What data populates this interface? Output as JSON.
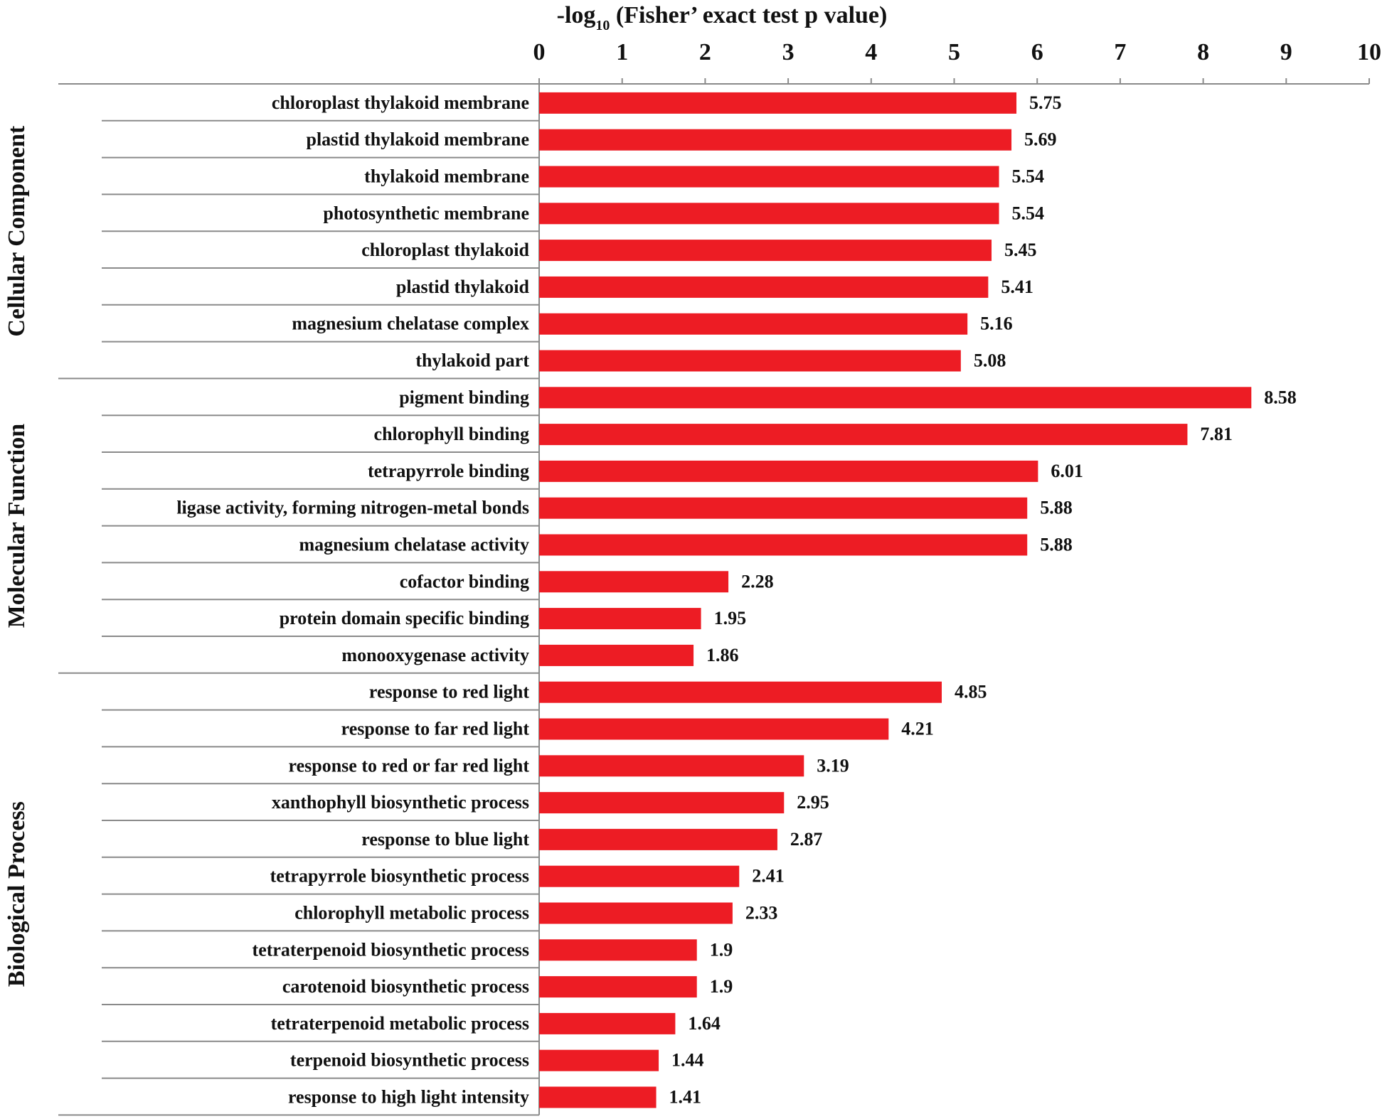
{
  "chart_data": {
    "type": "bar",
    "orientation": "horizontal",
    "title_prefix": "-log",
    "title_subscript": "10",
    "title_suffix": " (Fisher’ exact test p value)",
    "xlim": [
      0,
      10
    ],
    "ticks": [
      "0",
      "1",
      "2",
      "3",
      "4",
      "5",
      "6",
      "7",
      "8",
      "9",
      "10"
    ],
    "bar_color": "#ed1c24",
    "groups": [
      {
        "name": "Cellular Component",
        "items": [
          {
            "label": "chloroplast thylakoid membrane",
            "value": 5.75,
            "display": "5.75"
          },
          {
            "label": "plastid thylakoid membrane",
            "value": 5.69,
            "display": "5.69"
          },
          {
            "label": "thylakoid membrane",
            "value": 5.54,
            "display": "5.54"
          },
          {
            "label": "photosynthetic membrane",
            "value": 5.54,
            "display": "5.54"
          },
          {
            "label": "chloroplast thylakoid",
            "value": 5.45,
            "display": "5.45"
          },
          {
            "label": "plastid thylakoid",
            "value": 5.41,
            "display": "5.41"
          },
          {
            "label": "magnesium chelatase complex",
            "value": 5.16,
            "display": "5.16"
          },
          {
            "label": "thylakoid part",
            "value": 5.08,
            "display": "5.08"
          }
        ]
      },
      {
        "name": "Molecular Function",
        "items": [
          {
            "label": "pigment binding",
            "value": 8.58,
            "display": "8.58"
          },
          {
            "label": "chlorophyll binding",
            "value": 7.81,
            "display": "7.81"
          },
          {
            "label": "tetrapyrrole binding",
            "value": 6.01,
            "display": "6.01"
          },
          {
            "label": "ligase activity, forming nitrogen-metal bonds",
            "value": 5.88,
            "display": "5.88"
          },
          {
            "label": "magnesium chelatase activity",
            "value": 5.88,
            "display": "5.88"
          },
          {
            "label": "cofactor binding",
            "value": 2.28,
            "display": "2.28"
          },
          {
            "label": "protein domain specific binding",
            "value": 1.95,
            "display": "1.95"
          },
          {
            "label": "monooxygenase activity",
            "value": 1.86,
            "display": "1.86"
          }
        ]
      },
      {
        "name": "Biological Process",
        "items": [
          {
            "label": "response to red light",
            "value": 4.85,
            "display": "4.85"
          },
          {
            "label": "response to far red light",
            "value": 4.21,
            "display": "4.21"
          },
          {
            "label": "response to red or far red light",
            "value": 3.19,
            "display": "3.19"
          },
          {
            "label": "xanthophyll biosynthetic process",
            "value": 2.95,
            "display": "2.95"
          },
          {
            "label": "response to blue light",
            "value": 2.87,
            "display": "2.87"
          },
          {
            "label": "tetrapyrrole biosynthetic process",
            "value": 2.41,
            "display": "2.41"
          },
          {
            "label": "chlorophyll metabolic process",
            "value": 2.33,
            "display": "2.33"
          },
          {
            "label": "tetraterpenoid biosynthetic process",
            "value": 1.9,
            "display": "1.9"
          },
          {
            "label": "carotenoid biosynthetic process",
            "value": 1.9,
            "display": "1.9"
          },
          {
            "label": "tetraterpenoid metabolic process",
            "value": 1.64,
            "display": "1.64"
          },
          {
            "label": "terpenoid biosynthetic process",
            "value": 1.44,
            "display": "1.44"
          },
          {
            "label": "response to high light intensity",
            "value": 1.41,
            "display": "1.41"
          }
        ]
      }
    ]
  }
}
